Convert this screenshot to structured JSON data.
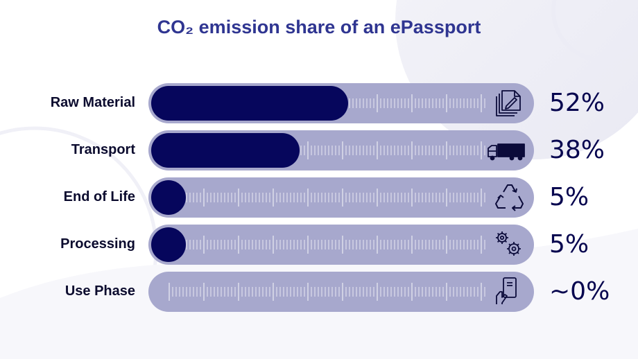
{
  "title": "CO₂ emission share of an ePassport",
  "colors": {
    "title": "#2f3591",
    "track": "#a7a8cd",
    "fill": "#06065c",
    "value": "#07064f"
  },
  "chart_data": {
    "type": "bar",
    "orientation": "horizontal",
    "categories": [
      "Raw Material",
      "Transport",
      "End of Life",
      "Processing",
      "Use Phase"
    ],
    "values": [
      52,
      38,
      5,
      5,
      0
    ],
    "value_labels": [
      "52%",
      "38%",
      "5%",
      "5%",
      "~0%"
    ],
    "icons": [
      "documents-pen-icon",
      "truck-icon",
      "recycle-icon",
      "gears-icon",
      "hand-card-icon"
    ],
    "xlim": [
      0,
      100
    ]
  }
}
